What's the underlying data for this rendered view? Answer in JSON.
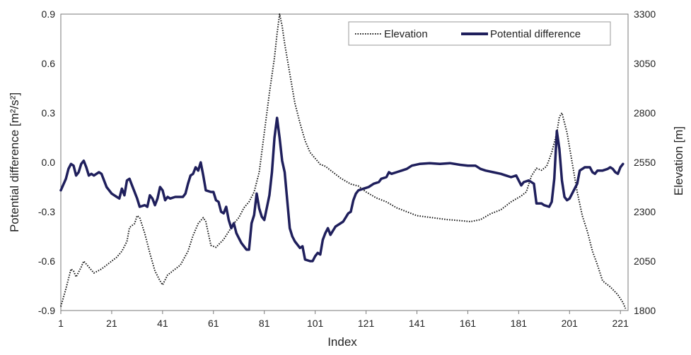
{
  "chart_data": {
    "type": "line",
    "title": "",
    "xlabel": "Index",
    "ylabel_left": "Potential difference [m²/s²]",
    "ylabel_right": "Elevation [m]",
    "xlim": [
      1,
      224
    ],
    "ylim_left": [
      -0.9,
      0.9
    ],
    "ylim_right": [
      1800,
      3300
    ],
    "x_ticks": [
      1,
      21,
      41,
      61,
      81,
      101,
      121,
      141,
      161,
      181,
      201,
      221
    ],
    "y_left_ticks": [
      "0.9",
      "0.6",
      "0.3",
      "0.0",
      "-0.3",
      "-0.6",
      "-0.9"
    ],
    "y_left_tick_values": [
      0.9,
      0.6,
      0.3,
      0.0,
      -0.3,
      -0.6,
      -0.9
    ],
    "y_right_ticks": [
      "3300",
      "3050",
      "2800",
      "2550",
      "2300",
      "2050",
      "1800"
    ],
    "y_right_tick_values": [
      3300,
      3050,
      2800,
      2550,
      2300,
      2050,
      1800
    ],
    "grid": false,
    "legend": "top-right",
    "series": [
      {
        "name": "Elevation",
        "axis": "right",
        "style": "dotted",
        "color": "#111111",
        "points": [
          [
            1,
            1820
          ],
          [
            3,
            1910
          ],
          [
            5,
            2010
          ],
          [
            6,
            2000
          ],
          [
            7,
            1970
          ],
          [
            9,
            2020
          ],
          [
            10,
            2050
          ],
          [
            12,
            2020
          ],
          [
            14,
            1990
          ],
          [
            17,
            2010
          ],
          [
            20,
            2040
          ],
          [
            23,
            2070
          ],
          [
            25,
            2100
          ],
          [
            27,
            2150
          ],
          [
            28,
            2220
          ],
          [
            30,
            2240
          ],
          [
            31,
            2280
          ],
          [
            32,
            2270
          ],
          [
            34,
            2190
          ],
          [
            36,
            2090
          ],
          [
            38,
            2000
          ],
          [
            40,
            1950
          ],
          [
            41,
            1930
          ],
          [
            43,
            1980
          ],
          [
            45,
            2000
          ],
          [
            48,
            2030
          ],
          [
            51,
            2100
          ],
          [
            53,
            2180
          ],
          [
            55,
            2240
          ],
          [
            57,
            2270
          ],
          [
            58,
            2250
          ],
          [
            60,
            2130
          ],
          [
            62,
            2120
          ],
          [
            65,
            2160
          ],
          [
            67,
            2200
          ],
          [
            69,
            2240
          ],
          [
            71,
            2270
          ],
          [
            73,
            2320
          ],
          [
            75,
            2350
          ],
          [
            77,
            2400
          ],
          [
            79,
            2500
          ],
          [
            81,
            2700
          ],
          [
            83,
            2900
          ],
          [
            85,
            3080
          ],
          [
            86,
            3200
          ],
          [
            87,
            3300
          ],
          [
            88,
            3240
          ],
          [
            89,
            3150
          ],
          [
            91,
            3000
          ],
          [
            93,
            2850
          ],
          [
            95,
            2750
          ],
          [
            97,
            2660
          ],
          [
            99,
            2600
          ],
          [
            101,
            2570
          ],
          [
            103,
            2540
          ],
          [
            105,
            2530
          ],
          [
            108,
            2500
          ],
          [
            111,
            2470
          ],
          [
            115,
            2440
          ],
          [
            118,
            2430
          ],
          [
            121,
            2400
          ],
          [
            125,
            2370
          ],
          [
            129,
            2350
          ],
          [
            133,
            2320
          ],
          [
            137,
            2300
          ],
          [
            141,
            2280
          ],
          [
            147,
            2270
          ],
          [
            153,
            2260
          ],
          [
            158,
            2255
          ],
          [
            162,
            2250
          ],
          [
            166,
            2260
          ],
          [
            170,
            2290
          ],
          [
            174,
            2310
          ],
          [
            178,
            2350
          ],
          [
            182,
            2380
          ],
          [
            184,
            2400
          ],
          [
            186,
            2480
          ],
          [
            188,
            2520
          ],
          [
            190,
            2510
          ],
          [
            192,
            2530
          ],
          [
            194,
            2600
          ],
          [
            196,
            2700
          ],
          [
            197,
            2780
          ],
          [
            198,
            2800
          ],
          [
            200,
            2700
          ],
          [
            202,
            2550
          ],
          [
            204,
            2400
          ],
          [
            206,
            2280
          ],
          [
            208,
            2200
          ],
          [
            210,
            2100
          ],
          [
            212,
            2030
          ],
          [
            214,
            1950
          ],
          [
            217,
            1920
          ],
          [
            220,
            1880
          ],
          [
            222,
            1840
          ],
          [
            223,
            1810
          ]
        ]
      },
      {
        "name": "Potential difference",
        "axis": "left",
        "style": "solid",
        "color": "#1f1f5c",
        "points": [
          [
            1,
            -0.17
          ],
          [
            3,
            -0.1
          ],
          [
            4,
            -0.04
          ],
          [
            5,
            -0.01
          ],
          [
            6,
            -0.02
          ],
          [
            7,
            -0.08
          ],
          [
            8,
            -0.06
          ],
          [
            9,
            -0.01
          ],
          [
            10,
            0.01
          ],
          [
            11,
            -0.03
          ],
          [
            12,
            -0.08
          ],
          [
            13,
            -0.07
          ],
          [
            14,
            -0.08
          ],
          [
            16,
            -0.06
          ],
          [
            17,
            -0.07
          ],
          [
            19,
            -0.15
          ],
          [
            21,
            -0.19
          ],
          [
            23,
            -0.21
          ],
          [
            24,
            -0.22
          ],
          [
            25,
            -0.16
          ],
          [
            26,
            -0.2
          ],
          [
            27,
            -0.11
          ],
          [
            28,
            -0.1
          ],
          [
            29,
            -0.14
          ],
          [
            31,
            -0.22
          ],
          [
            32,
            -0.27
          ],
          [
            34,
            -0.26
          ],
          [
            35,
            -0.27
          ],
          [
            36,
            -0.2
          ],
          [
            37,
            -0.22
          ],
          [
            38,
            -0.26
          ],
          [
            39,
            -0.22
          ],
          [
            40,
            -0.15
          ],
          [
            41,
            -0.17
          ],
          [
            42,
            -0.23
          ],
          [
            43,
            -0.21
          ],
          [
            44,
            -0.22
          ],
          [
            46,
            -0.21
          ],
          [
            49,
            -0.21
          ],
          [
            50,
            -0.19
          ],
          [
            51,
            -0.13
          ],
          [
            52,
            -0.08
          ],
          [
            53,
            -0.07
          ],
          [
            54,
            -0.03
          ],
          [
            55,
            -0.05
          ],
          [
            56,
            0.0
          ],
          [
            57,
            -0.08
          ],
          [
            58,
            -0.17
          ],
          [
            60,
            -0.18
          ],
          [
            61,
            -0.18
          ],
          [
            62,
            -0.23
          ],
          [
            63,
            -0.24
          ],
          [
            64,
            -0.3
          ],
          [
            65,
            -0.31
          ],
          [
            66,
            -0.27
          ],
          [
            67,
            -0.35
          ],
          [
            68,
            -0.4
          ],
          [
            69,
            -0.37
          ],
          [
            70,
            -0.43
          ],
          [
            71,
            -0.46
          ],
          [
            72,
            -0.49
          ],
          [
            74,
            -0.53
          ],
          [
            75,
            -0.53
          ],
          [
            76,
            -0.37
          ],
          [
            77,
            -0.32
          ],
          [
            78,
            -0.19
          ],
          [
            79,
            -0.28
          ],
          [
            80,
            -0.33
          ],
          [
            81,
            -0.35
          ],
          [
            83,
            -0.2
          ],
          [
            84,
            -0.06
          ],
          [
            85,
            0.15
          ],
          [
            86,
            0.27
          ],
          [
            87,
            0.15
          ],
          [
            88,
            0.01
          ],
          [
            89,
            -0.06
          ],
          [
            90,
            -0.23
          ],
          [
            91,
            -0.4
          ],
          [
            92,
            -0.45
          ],
          [
            93,
            -0.48
          ],
          [
            95,
            -0.52
          ],
          [
            96,
            -0.51
          ],
          [
            97,
            -0.59
          ],
          [
            99,
            -0.6
          ],
          [
            100,
            -0.6
          ],
          [
            101,
            -0.57
          ],
          [
            102,
            -0.55
          ],
          [
            103,
            -0.56
          ],
          [
            104,
            -0.47
          ],
          [
            105,
            -0.43
          ],
          [
            106,
            -0.4
          ],
          [
            107,
            -0.44
          ],
          [
            109,
            -0.39
          ],
          [
            112,
            -0.36
          ],
          [
            114,
            -0.31
          ],
          [
            115,
            -0.3
          ],
          [
            116,
            -0.23
          ],
          [
            117,
            -0.19
          ],
          [
            118,
            -0.17
          ],
          [
            120,
            -0.16
          ],
          [
            122,
            -0.15
          ],
          [
            124,
            -0.13
          ],
          [
            126,
            -0.12
          ],
          [
            127,
            -0.1
          ],
          [
            129,
            -0.09
          ],
          [
            130,
            -0.06
          ],
          [
            131,
            -0.07
          ],
          [
            133,
            -0.06
          ],
          [
            135,
            -0.05
          ],
          [
            137,
            -0.04
          ],
          [
            139,
            -0.02
          ],
          [
            142,
            -0.01
          ],
          [
            146,
            -0.005
          ],
          [
            150,
            -0.01
          ],
          [
            154,
            -0.005
          ],
          [
            158,
            -0.015
          ],
          [
            161,
            -0.02
          ],
          [
            164,
            -0.02
          ],
          [
            166,
            -0.04
          ],
          [
            168,
            -0.05
          ],
          [
            171,
            -0.06
          ],
          [
            174,
            -0.07
          ],
          [
            176,
            -0.08
          ],
          [
            178,
            -0.09
          ],
          [
            180,
            -0.08
          ],
          [
            181,
            -0.11
          ],
          [
            182,
            -0.14
          ],
          [
            183,
            -0.12
          ],
          [
            185,
            -0.11
          ],
          [
            187,
            -0.13
          ],
          [
            188,
            -0.25
          ],
          [
            190,
            -0.25
          ],
          [
            191,
            -0.26
          ],
          [
            193,
            -0.27
          ],
          [
            194,
            -0.24
          ],
          [
            195,
            -0.1
          ],
          [
            196,
            0.19
          ],
          [
            197,
            0.08
          ],
          [
            198,
            -0.11
          ],
          [
            199,
            -0.21
          ],
          [
            200,
            -0.23
          ],
          [
            201,
            -0.22
          ],
          [
            202,
            -0.19
          ],
          [
            203,
            -0.16
          ],
          [
            204,
            -0.13
          ],
          [
            205,
            -0.05
          ],
          [
            207,
            -0.03
          ],
          [
            209,
            -0.03
          ],
          [
            210,
            -0.06
          ],
          [
            211,
            -0.07
          ],
          [
            212,
            -0.05
          ],
          [
            214,
            -0.05
          ],
          [
            216,
            -0.04
          ],
          [
            217,
            -0.03
          ],
          [
            218,
            -0.04
          ],
          [
            219,
            -0.06
          ],
          [
            220,
            -0.07
          ],
          [
            221,
            -0.03
          ],
          [
            222,
            -0.01
          ]
        ]
      }
    ]
  }
}
